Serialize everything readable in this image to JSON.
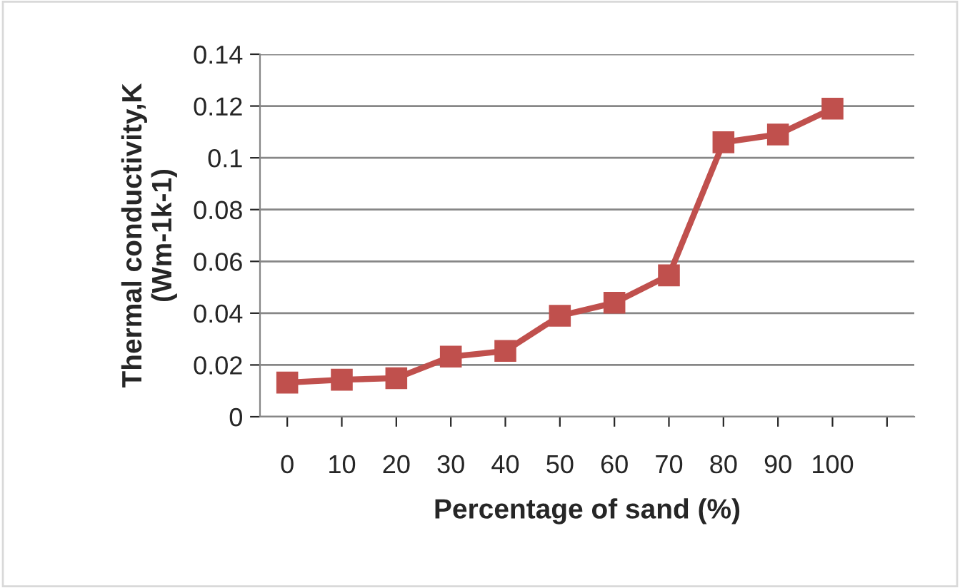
{
  "chart_data": {
    "type": "line",
    "xlabel": "Percentage of sand (%)",
    "ylabel": "Thermal conductivity,K\n(Wm-1k-1)",
    "categories": [
      "0",
      "10",
      "20",
      "30",
      "40",
      "50",
      "60",
      "70",
      "80",
      "90",
      "100",
      null
    ],
    "series": [
      {
        "color": "#c0504d",
        "values": [
          0.0132,
          0.0143,
          0.0149,
          0.0232,
          0.0254,
          0.039,
          0.044,
          0.0546,
          0.106,
          0.109,
          0.119,
          null
        ]
      }
    ],
    "ylim": [
      0,
      0.14
    ],
    "yticks": [
      {
        "value": 0,
        "label": "0"
      },
      {
        "value": 0.02,
        "label": "0.02"
      },
      {
        "value": 0.04,
        "label": "0.04"
      },
      {
        "value": 0.06,
        "label": "0.06"
      },
      {
        "value": 0.08,
        "label": "0.08"
      },
      {
        "value": 0.1,
        "label": "0.1"
      },
      {
        "value": 0.12,
        "label": "0.12"
      },
      {
        "value": 0.14,
        "label": "0.14"
      }
    ],
    "grid": "y",
    "marker": "square",
    "line_style": "solid"
  }
}
